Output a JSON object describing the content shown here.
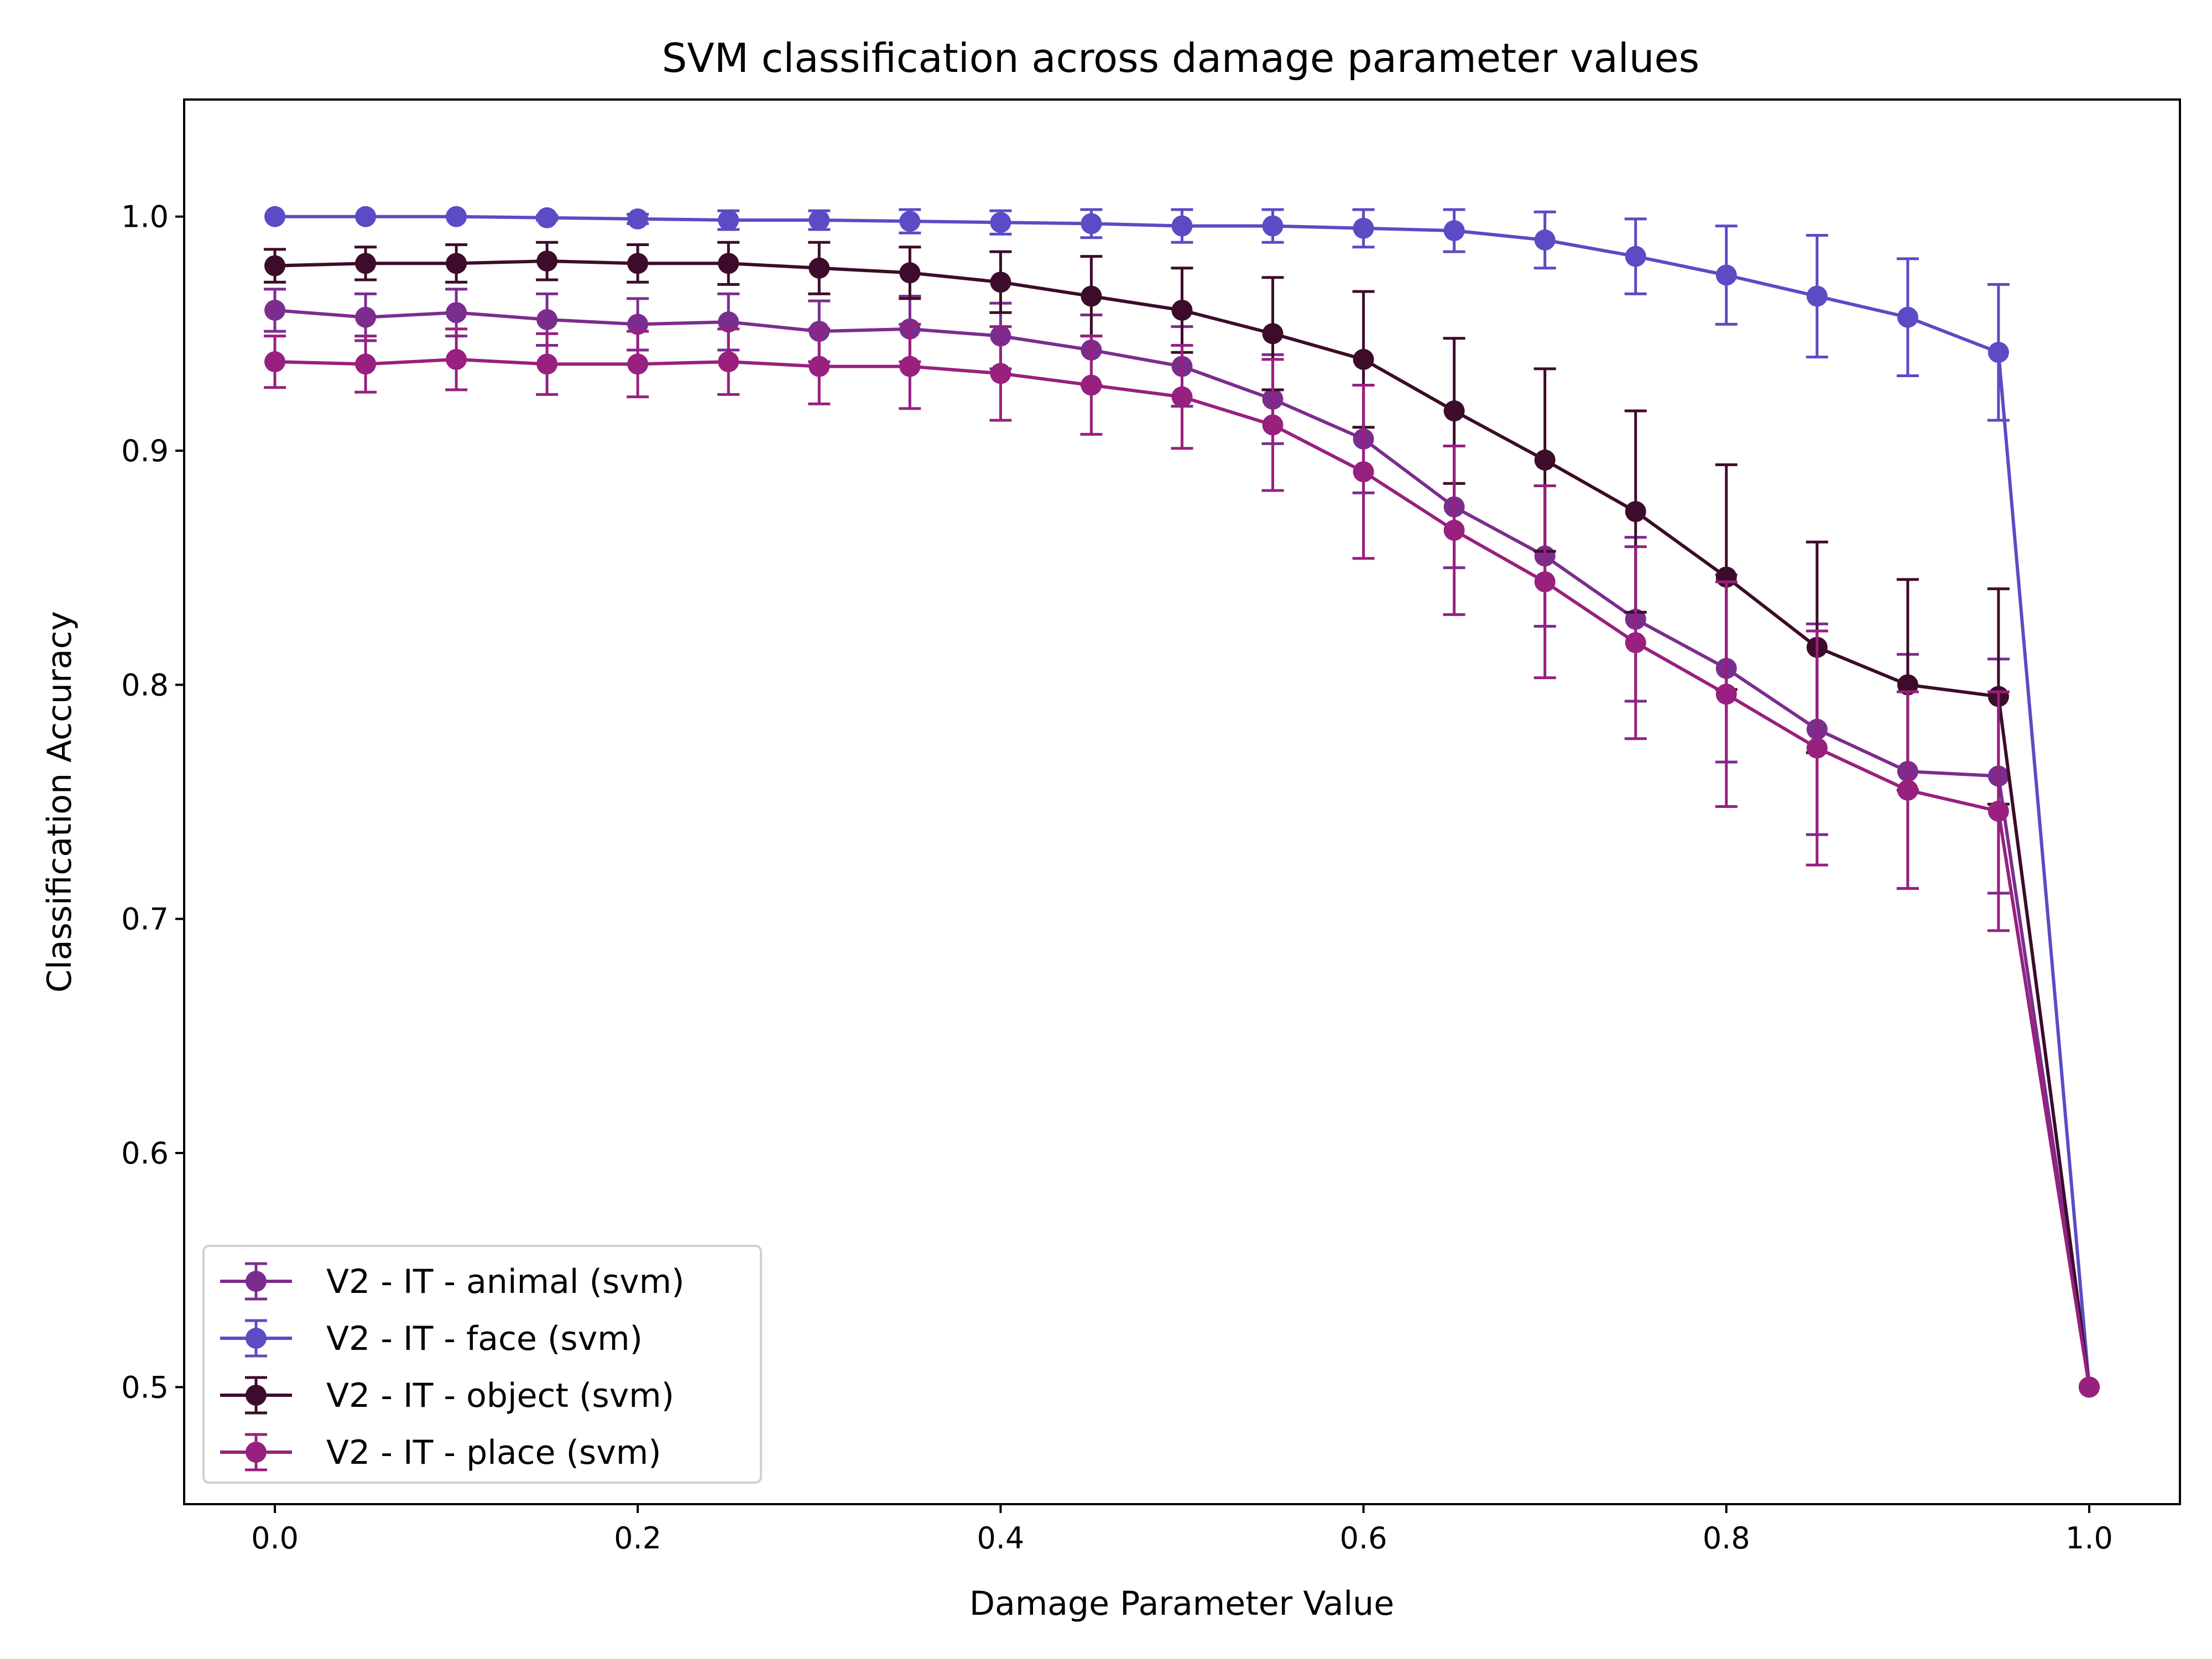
{
  "chart_data": {
    "type": "line",
    "title": "SVM classification across damage parameter values",
    "xlabel": "Damage Parameter Value",
    "ylabel": "Classification Accuracy",
    "xlim": [
      -0.05,
      1.05
    ],
    "ylim": [
      0.45,
      1.05
    ],
    "xticks": [
      0.0,
      0.2,
      0.4,
      0.6,
      0.8,
      1.0
    ],
    "xtick_labels": [
      "0.0",
      "0.2",
      "0.4",
      "0.6",
      "0.8",
      "1.0"
    ],
    "yticks": [
      0.5,
      0.6,
      0.7,
      0.8,
      0.9,
      1.0
    ],
    "ytick_labels": [
      "0.5",
      "0.6",
      "0.7",
      "0.8",
      "0.9",
      "1.0"
    ],
    "grid": false,
    "legend_position": "lower-left",
    "x": [
      0.0,
      0.05,
      0.1,
      0.15,
      0.2,
      0.25,
      0.3,
      0.35,
      0.4,
      0.45,
      0.5,
      0.55,
      0.6,
      0.65,
      0.7,
      0.75,
      0.8,
      0.85,
      0.9,
      0.95,
      1.0
    ],
    "series": [
      {
        "name": "V2 - IT - animal (svm)",
        "color": "#7B2D8E",
        "values": [
          0.96,
          0.957,
          0.959,
          0.956,
          0.954,
          0.955,
          0.951,
          0.952,
          0.949,
          0.943,
          0.936,
          0.922,
          0.905,
          0.876,
          0.855,
          0.828,
          0.807,
          0.781,
          0.763,
          0.761,
          0.5
        ],
        "errors": [
          0.009,
          0.01,
          0.01,
          0.011,
          0.011,
          0.012,
          0.013,
          0.014,
          0.014,
          0.015,
          0.017,
          0.019,
          0.023,
          0.026,
          0.03,
          0.035,
          0.04,
          0.045,
          0.05,
          0.05,
          0.0
        ]
      },
      {
        "name": "V2 - IT - face (svm)",
        "color": "#5B4BC4",
        "values": [
          1.0,
          1.0,
          1.0,
          0.9995,
          0.999,
          0.9985,
          0.9985,
          0.998,
          0.9975,
          0.997,
          0.996,
          0.996,
          0.995,
          0.994,
          0.99,
          0.983,
          0.975,
          0.966,
          0.957,
          0.942,
          0.5
        ],
        "errors": [
          0.0,
          0.0,
          0.0,
          0.001,
          0.002,
          0.004,
          0.004,
          0.005,
          0.005,
          0.006,
          0.007,
          0.007,
          0.008,
          0.009,
          0.012,
          0.016,
          0.021,
          0.026,
          0.025,
          0.029,
          0.0
        ]
      },
      {
        "name": "V2 - IT - object (svm)",
        "color": "#3D0C2A",
        "values": [
          0.979,
          0.98,
          0.98,
          0.981,
          0.98,
          0.98,
          0.978,
          0.976,
          0.972,
          0.966,
          0.96,
          0.95,
          0.939,
          0.917,
          0.896,
          0.874,
          0.846,
          0.816,
          0.8,
          0.795,
          0.5
        ],
        "errors": [
          0.007,
          0.007,
          0.008,
          0.008,
          0.008,
          0.009,
          0.011,
          0.011,
          0.013,
          0.017,
          0.018,
          0.024,
          0.029,
          0.031,
          0.039,
          0.043,
          0.048,
          0.045,
          0.045,
          0.046,
          0.0
        ]
      },
      {
        "name": "V2 - IT - place (svm)",
        "color": "#98207E",
        "values": [
          0.938,
          0.937,
          0.939,
          0.937,
          0.937,
          0.938,
          0.936,
          0.936,
          0.933,
          0.928,
          0.923,
          0.911,
          0.891,
          0.866,
          0.844,
          0.818,
          0.796,
          0.773,
          0.755,
          0.746,
          0.5
        ],
        "errors": [
          0.011,
          0.012,
          0.013,
          0.013,
          0.014,
          0.014,
          0.016,
          0.018,
          0.02,
          0.021,
          0.022,
          0.028,
          0.037,
          0.036,
          0.041,
          0.041,
          0.048,
          0.05,
          0.042,
          0.051,
          0.0
        ]
      }
    ]
  }
}
